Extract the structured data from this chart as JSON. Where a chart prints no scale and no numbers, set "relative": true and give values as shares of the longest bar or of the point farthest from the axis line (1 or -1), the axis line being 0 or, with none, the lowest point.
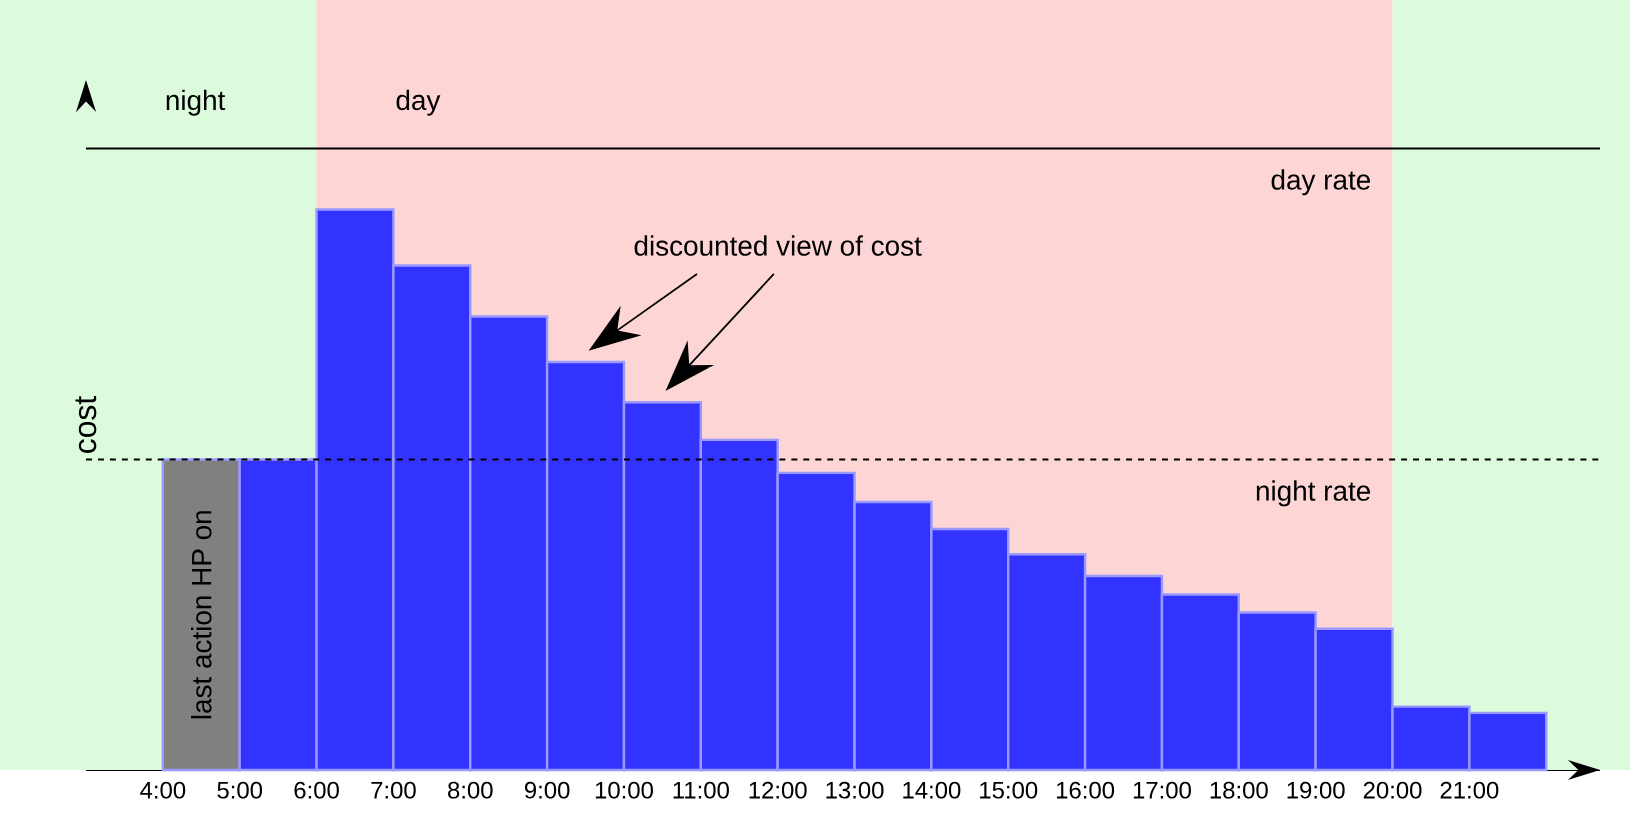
{
  "chart_data": {
    "type": "bar",
    "relative": true,
    "ylabel": "cost",
    "x": [
      4.5,
      5.5,
      6.5,
      7.5,
      8.5,
      9.5,
      10.5,
      11.5,
      12.5,
      13.5,
      14.5,
      15.5,
      16.5,
      17.5,
      18.5,
      19.5,
      20.5,
      21.5
    ],
    "values": [
      0.554,
      0.554,
      1,
      0.9,
      0.809,
      0.728,
      0.656,
      0.589,
      0.53,
      0.478,
      0.43,
      0.385,
      0.346,
      0.313,
      0.281,
      0.252,
      0.113,
      0.102
    ],
    "colors": [
      "#808080",
      "#3333ff",
      "#3333ff",
      "#3333ff",
      "#3333ff",
      "#3333ff",
      "#3333ff",
      "#3333ff",
      "#3333ff",
      "#3333ff",
      "#3333ff",
      "#3333ff",
      "#3333ff",
      "#3333ff",
      "#3333ff",
      "#3333ff",
      "#3333ff",
      "#3333ff"
    ],
    "xlim": [
      3,
      22.7
    ],
    "xticks": [
      {
        "value": 4,
        "label": "4:00"
      },
      {
        "value": 5,
        "label": "5:00"
      },
      {
        "value": 6,
        "label": "6:00"
      },
      {
        "value": 7,
        "label": "7:00"
      },
      {
        "value": 8,
        "label": "8:00"
      },
      {
        "value": 9,
        "label": "9:00"
      },
      {
        "value": 10,
        "label": "10:00"
      },
      {
        "value": 11,
        "label": "11:00"
      },
      {
        "value": 12,
        "label": "12:00"
      },
      {
        "value": 13,
        "label": "13:00"
      },
      {
        "value": 14,
        "label": "14:00"
      },
      {
        "value": 15,
        "label": "15:00"
      },
      {
        "value": 16,
        "label": "16:00"
      },
      {
        "value": 17,
        "label": "17:00"
      },
      {
        "value": 18,
        "label": "18:00"
      },
      {
        "value": 19,
        "label": "19:00"
      },
      {
        "value": 20,
        "label": "20:00"
      },
      {
        "value": 21,
        "label": "21:00"
      }
    ],
    "bands": [
      {
        "axis": "x",
        "from": 3,
        "to": 6,
        "label": "night",
        "color": "#dcfadc"
      },
      {
        "axis": "x",
        "from": 6,
        "to": 20,
        "label": "day",
        "color": "#fdd5d5"
      },
      {
        "axis": "x",
        "from": 20,
        "to": 22.7,
        "color": "#dcfadc"
      }
    ],
    "ref_lines": [
      {
        "axis": "y",
        "value": 1.109,
        "label": "day rate",
        "line_style": "solid"
      },
      {
        "axis": "y",
        "value": 0.554,
        "label": "night rate",
        "line_style": "dashed"
      }
    ],
    "annotations": [
      "discounted view of cost",
      "last action HP on"
    ]
  }
}
